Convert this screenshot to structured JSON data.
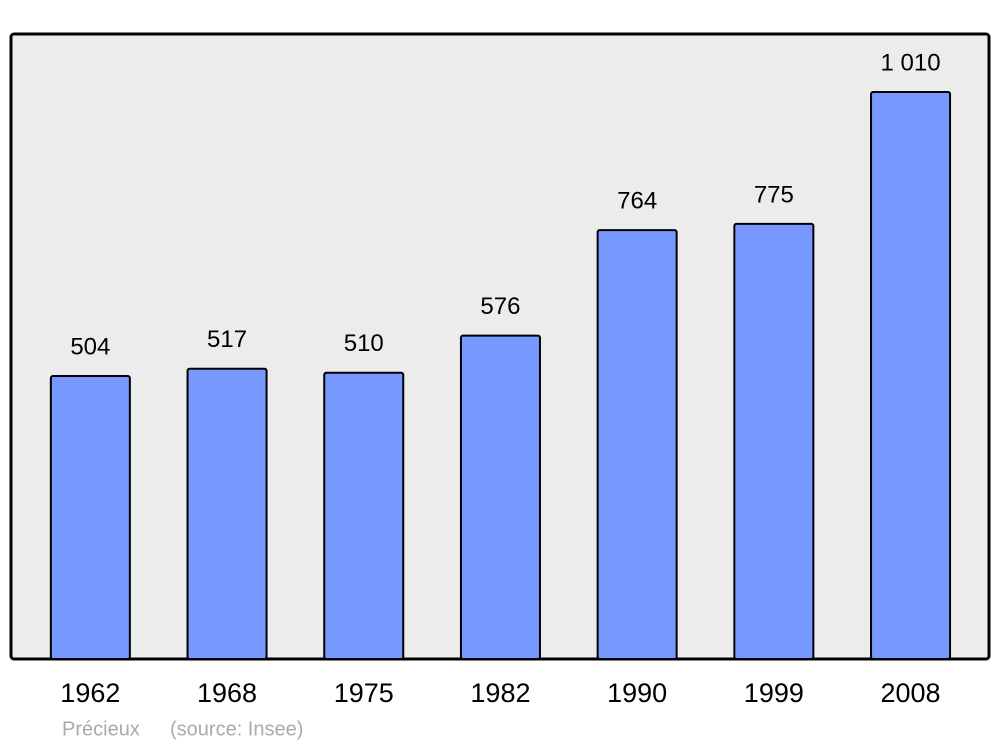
{
  "chart_data": {
    "type": "bar",
    "categories": [
      "1962",
      "1968",
      "1975",
      "1982",
      "1990",
      "1999",
      "2008"
    ],
    "values": [
      504,
      517,
      510,
      576,
      764,
      775,
      1010
    ],
    "value_labels": [
      "504",
      "517",
      "510",
      "576",
      "764",
      "775",
      "1 010"
    ],
    "color": "#7799ff",
    "footer": [
      "Précieux",
      "(source: Insee)"
    ]
  }
}
